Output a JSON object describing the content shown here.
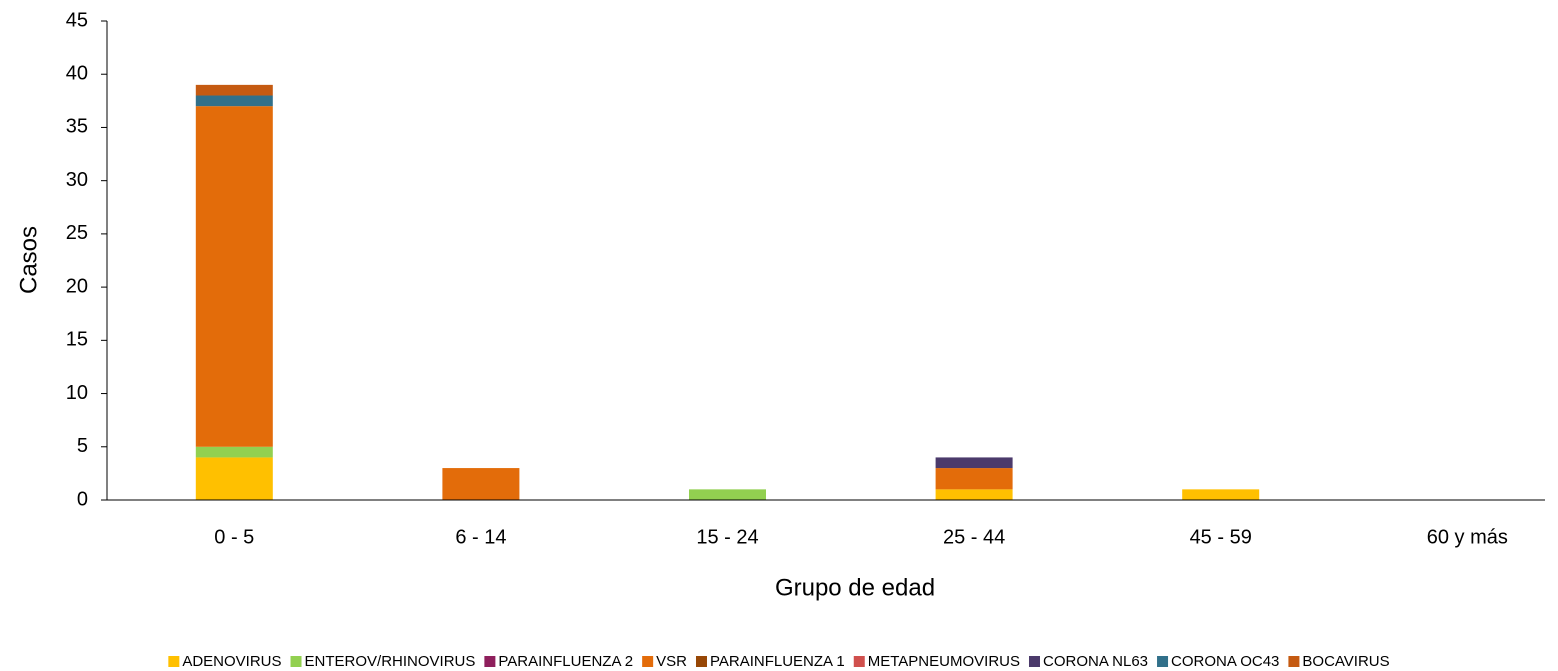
{
  "chart_data": {
    "type": "stacked_bar",
    "xlabel": "Grupo de edad",
    "ylabel": "Casos",
    "categories": [
      "0 - 5",
      "6 - 14",
      "15 - 24",
      "25 - 44",
      "45 - 59",
      "60 y más"
    ],
    "series": [
      {
        "name": "ADENOVIRUS",
        "color": "#ffc000",
        "values": [
          4,
          0,
          0,
          1,
          1,
          0
        ]
      },
      {
        "name": "ENTEROV/RHINOVIRUS",
        "color": "#92d050",
        "values": [
          1,
          0,
          1,
          0,
          0,
          0
        ]
      },
      {
        "name": "PARAINFLUENZA 2",
        "color": "#8e1f5c",
        "values": [
          0,
          0,
          0,
          0,
          0,
          0
        ]
      },
      {
        "name": "VSR",
        "color": "#e36c0a",
        "values": [
          32,
          3,
          0,
          2,
          0,
          0
        ]
      },
      {
        "name": "PARAINFLUENZA 1",
        "color": "#974706",
        "values": [
          0,
          0,
          0,
          0,
          0,
          0
        ]
      },
      {
        "name": "METAPNEUMOVIRUS",
        "color": "#d0504d",
        "values": [
          0,
          0,
          0,
          0,
          0,
          0
        ]
      },
      {
        "name": "CORONA NL63",
        "color": "#4b3a6b",
        "values": [
          0,
          0,
          0,
          1,
          0,
          0
        ]
      },
      {
        "name": "CORONA OC43",
        "color": "#31708a",
        "values": [
          1,
          0,
          0,
          0,
          0,
          0
        ]
      },
      {
        "name": "BOCAVIRUS",
        "color": "#c55a11",
        "values": [
          1,
          0,
          0,
          0,
          0,
          0
        ]
      }
    ],
    "ylim": [
      0,
      45
    ],
    "yticks": [
      0,
      5,
      10,
      15,
      20,
      25,
      30,
      35,
      40,
      45
    ],
    "grid": false,
    "legend": "bottom"
  }
}
